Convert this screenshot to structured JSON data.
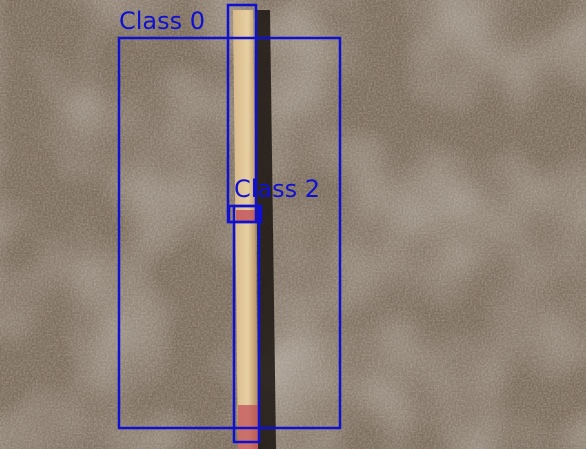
{
  "detections": [
    {
      "label": "Class 0"
    },
    {
      "label": "Class 2"
    }
  ]
}
